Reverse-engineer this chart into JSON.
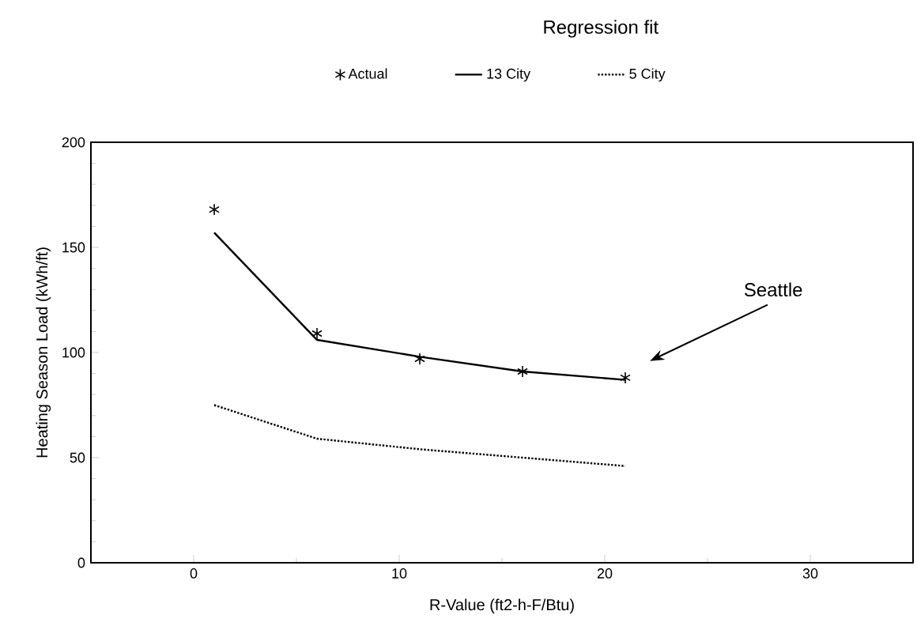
{
  "chart_data": {
    "type": "line",
    "xlabel": "R-Value (ft2-h-F/Btu)",
    "ylabel": "Heating Season Load (kWh/ft)",
    "legend_title": "Regression fit",
    "x": [
      1,
      6,
      11,
      16,
      21
    ],
    "series": [
      {
        "name": "Actual",
        "type": "scatter",
        "marker": "cross",
        "color": "#000000",
        "values": [
          168,
          109,
          97,
          91,
          88
        ]
      },
      {
        "name": "13 City",
        "type": "line",
        "line_style": "solid",
        "color": "#000000",
        "values": [
          157,
          106,
          98,
          91,
          87
        ]
      },
      {
        "name": "5 City",
        "type": "line",
        "line_style": "dotted",
        "color": "#000000",
        "values": [
          75,
          59,
          54,
          50,
          46
        ]
      }
    ],
    "xlim": [
      -5,
      35
    ],
    "ylim": [
      0,
      200
    ],
    "xticks": [
      0,
      10,
      20,
      30
    ],
    "yticks": [
      0,
      50,
      100,
      150,
      200
    ],
    "grid": false,
    "legend": "top",
    "annotations": [
      "Seattle"
    ]
  }
}
